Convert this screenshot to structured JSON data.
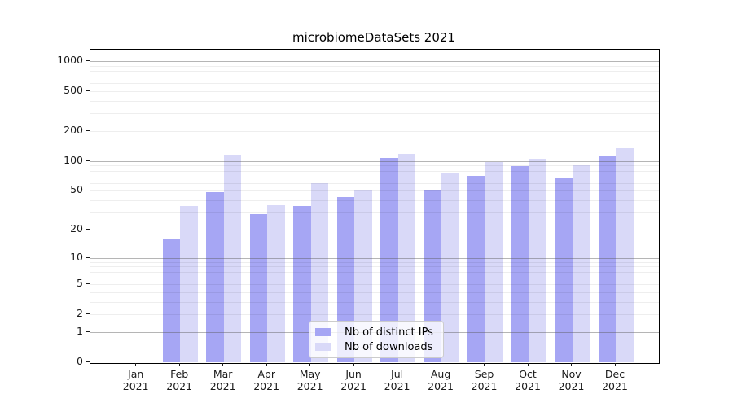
{
  "title": "microbiomeDataSets 2021",
  "chart_data": {
    "type": "bar",
    "categories": [
      "Jan 2021",
      "Feb 2021",
      "Mar 2021",
      "Apr 2021",
      "May 2021",
      "Jun 2021",
      "Jul 2021",
      "Aug 2021",
      "Sep 2021",
      "Oct 2021",
      "Nov 2021",
      "Dec 2021"
    ],
    "series": [
      {
        "name": "Nb of distinct IPs",
        "color": "#a6a6f4",
        "values": [
          0,
          16,
          49,
          29,
          35,
          43,
          108,
          50,
          71,
          89,
          67,
          112
        ]
      },
      {
        "name": "Nb of downloads",
        "color": "#d9d9f8",
        "values": [
          0,
          35,
          115,
          36,
          60,
          50,
          119,
          75,
          97,
          105,
          91,
          135
        ]
      }
    ],
    "title": "microbiomeDataSets 2021",
    "xlabel": "",
    "ylabel": "",
    "yscale": "log-like (log10 of 1+x)",
    "yticks": [
      0,
      1,
      2,
      5,
      10,
      20,
      50,
      100,
      200,
      500,
      1000
    ],
    "ylim": [
      0,
      1200
    ],
    "grid": "horizontal major and minor gridlines",
    "legend_position": "lower center"
  },
  "colors": {
    "distinct_ips_bar": "#a6a6f4",
    "downloads_bar": "#d9d9f8",
    "major_gridline": "#b0b0b0",
    "minor_gridline": "#ebebeb",
    "axis": "#000000",
    "background": "#ffffff"
  }
}
